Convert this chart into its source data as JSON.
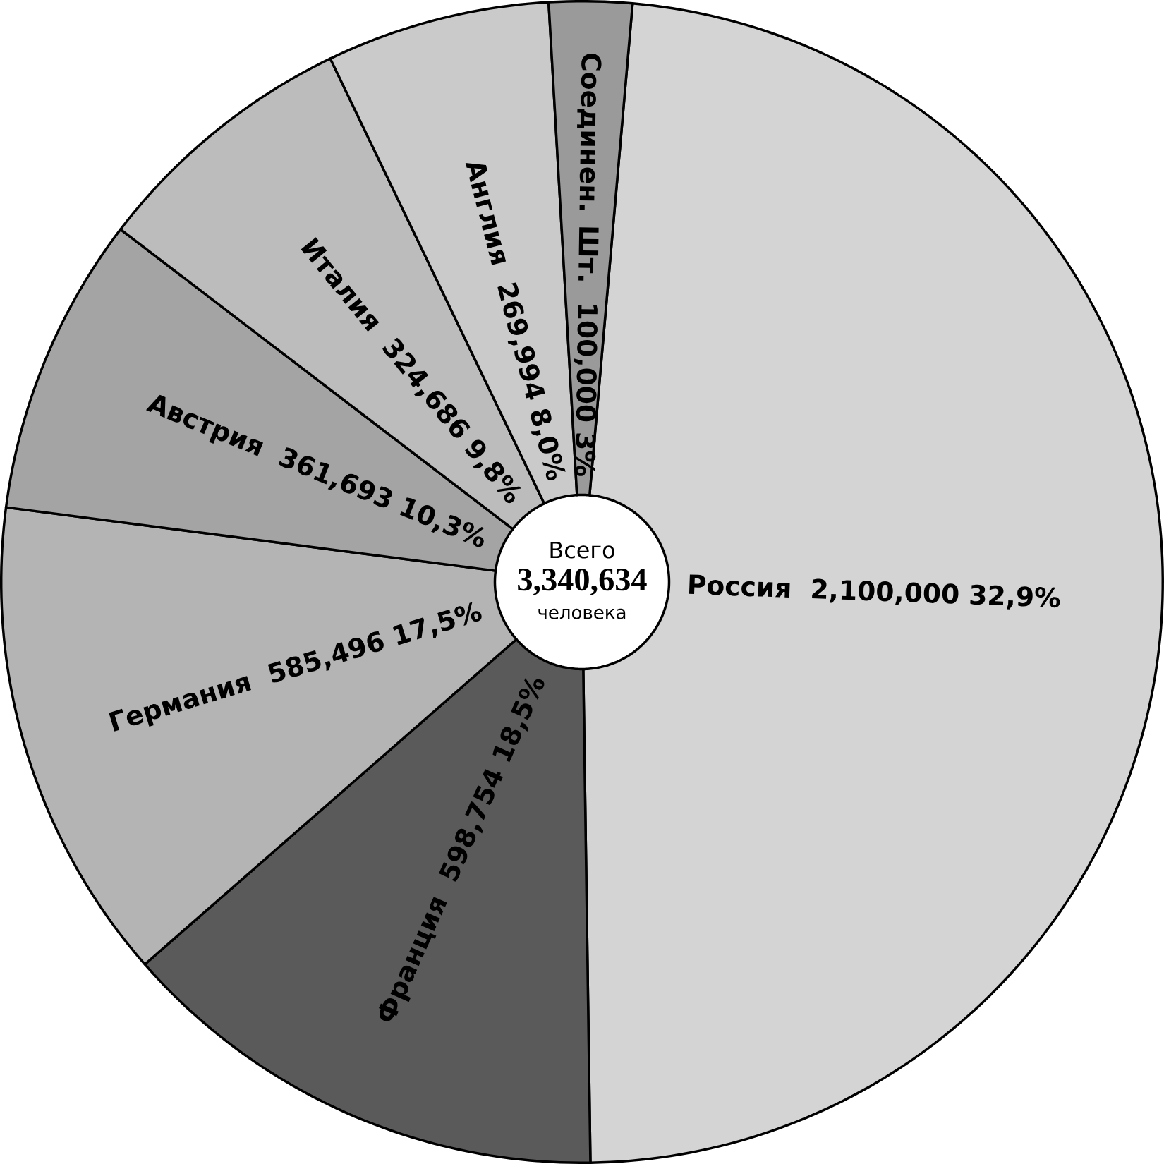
{
  "chart_data": {
    "type": "donut",
    "categories": [
      "Россия",
      "Франция",
      "Германия",
      "Австрия",
      "Италия",
      "Англия",
      "Соединен. Шт."
    ],
    "values": [
      2100000,
      598754,
      585496,
      361693,
      324686,
      269994,
      100000
    ],
    "value_labels": [
      "2,100,000 32,9%",
      "598,754 18,5%",
      "585,496 17,5%",
      "361,693 10,3%",
      "324,686 9,8%",
      "269,994 8,0%",
      "100,000 3%"
    ],
    "colors": [
      "#d4d4d4",
      "#5a5a5a",
      "#b4b4b4",
      "#a4a4a4",
      "#bcbcbc",
      "#cacaca",
      "#9a9a9a"
    ],
    "annotations": [
      "Всего",
      "3,340,634",
      "человека"
    ]
  }
}
